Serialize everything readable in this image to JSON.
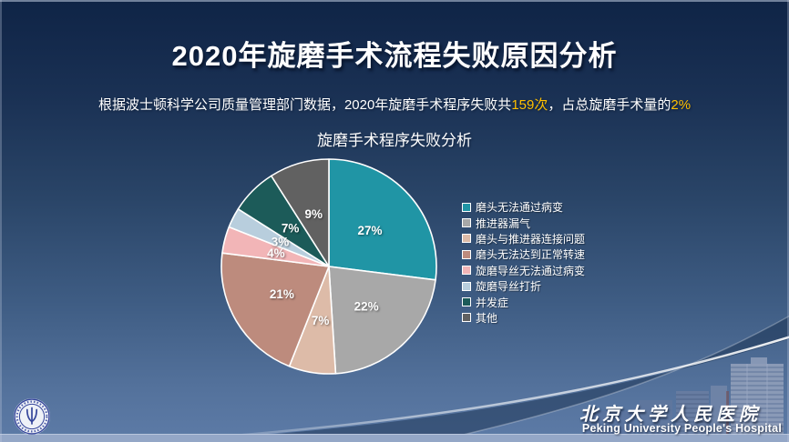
{
  "slide": {
    "title": "2020年旋磨手术流程失败原因分析",
    "subtitle_parts": [
      {
        "text": "根据波士顿科学公司质量管理部门数据，2020年旋磨手术程序失败共",
        "highlight": false
      },
      {
        "text": "159次",
        "highlight": true
      },
      {
        "text": "，占总旋磨手术量的",
        "highlight": false
      },
      {
        "text": "2%",
        "highlight": true
      }
    ],
    "highlight_color": "#ffc000"
  },
  "chart_data": {
    "type": "pie",
    "title": "旋磨手术程序失败分析",
    "series": [
      {
        "name": "磨头无法通过病变",
        "value": 27,
        "label": "27%",
        "color": "#2095a5"
      },
      {
        "name": "推进器漏气",
        "value": 22,
        "label": "22%",
        "color": "#a8a8a8"
      },
      {
        "name": "磨头与推进器连接问题",
        "value": 7,
        "label": "7%",
        "color": "#ddbba8"
      },
      {
        "name": "磨头无法达到正常转速",
        "value": 21,
        "label": "21%",
        "color": "#bd8b7d"
      },
      {
        "name": "旋磨导丝无法通过病变",
        "value": 4,
        "label": "4%",
        "color": "#f2b5b7"
      },
      {
        "name": "旋磨导丝打折",
        "value": 3,
        "label": "3%",
        "color": "#b8cedd"
      },
      {
        "name": "并发症",
        "value": 7,
        "label": "7%",
        "color": "#1c5b59"
      },
      {
        "name": "其他",
        "value": 9,
        "label": "9%",
        "color": "#616161"
      }
    ],
    "start_angle_deg": 0,
    "direction": "clockwise",
    "slice_border_color": "#ffffff",
    "label_color": "#ffffff",
    "legend_position": "right",
    "total": 100
  },
  "footer": {
    "hospital_name_cn": "北京大学人民医院",
    "hospital_name_en": "Peking University People's Hospital"
  }
}
